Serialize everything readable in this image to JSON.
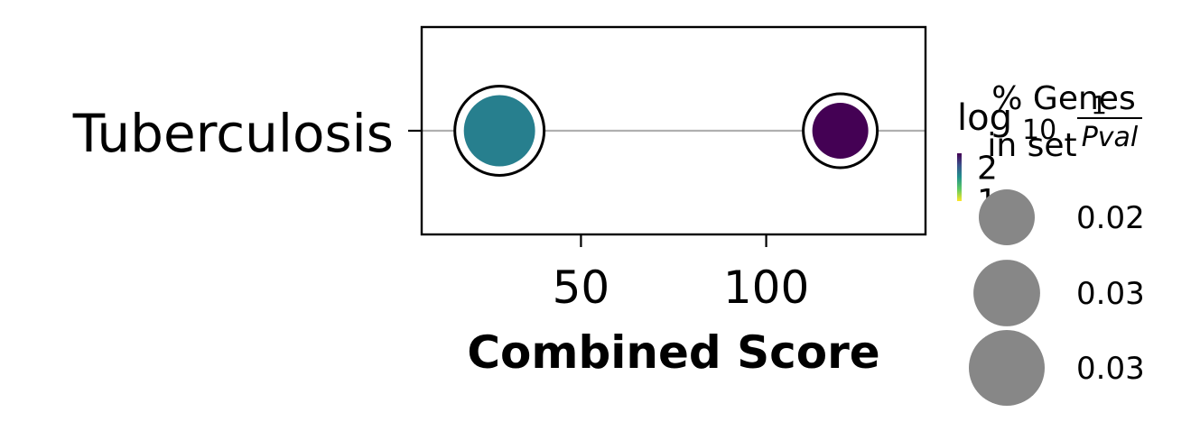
{
  "chart_data": {
    "type": "scatter",
    "xlabel": "Combined Score",
    "ylabel": "",
    "categories": [
      "Tuberculosis"
    ],
    "xlim": [
      7,
      143
    ],
    "xticks": [
      50,
      100
    ],
    "grid": "horizontal",
    "points": [
      {
        "category": "Tuberculosis",
        "x": 28,
        "neg_log10_pval": 1.6,
        "pct_genes": 0.03,
        "color": "#277f8e"
      },
      {
        "category": "Tuberculosis",
        "x": 120,
        "neg_log10_pval": 2.2,
        "pct_genes": 0.02,
        "color": "#440154"
      }
    ],
    "colorbar": {
      "title": "log10 1/Pval",
      "title_main": "log",
      "title_sub": "10",
      "title_num": "1",
      "title_den": "Pval",
      "ticks": [
        2,
        1
      ],
      "range": [
        0.95,
        2.4
      ],
      "colormap": [
        "#fde725",
        "#5ec962",
        "#21918c",
        "#3b528b",
        "#440154"
      ]
    },
    "size_legend": {
      "title_line1": "% Genes",
      "title_line2": "in set",
      "entries": [
        {
          "label": "0.02",
          "value": 0.02
        },
        {
          "label": "0.03",
          "value": 0.027
        },
        {
          "label": "0.03",
          "value": 0.033
        }
      ],
      "marker_color": "#878787"
    },
    "legend_position": "right"
  }
}
